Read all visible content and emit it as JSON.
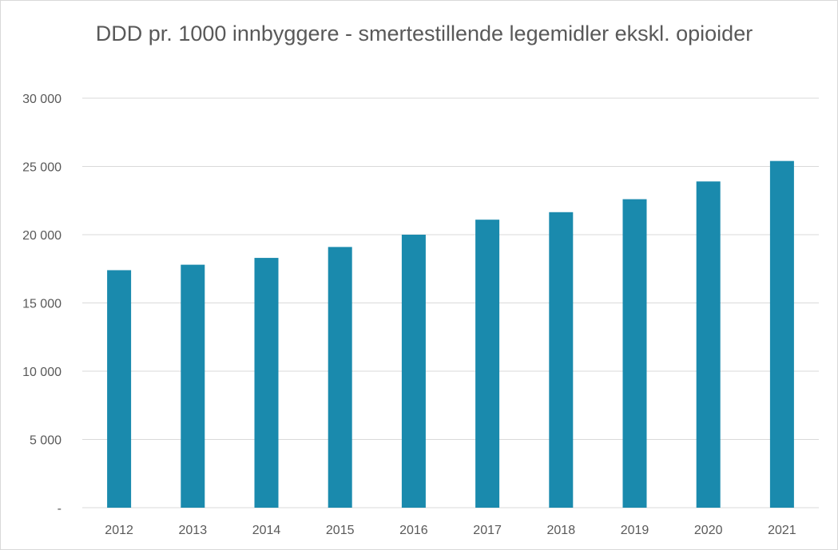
{
  "chart_data": {
    "type": "bar",
    "title": "DDD pr. 1000 innbyggere - smertestillende legemidler ekskl. opioider",
    "xlabel": "",
    "ylabel": "",
    "categories": [
      "2012",
      "2013",
      "2014",
      "2015",
      "2016",
      "2017",
      "2018",
      "2019",
      "2020",
      "2021"
    ],
    "series": [
      {
        "values": [
          17400,
          17800,
          18300,
          19100,
          20000,
          21100,
          21650,
          22600,
          23900,
          25400
        ]
      }
    ],
    "ylim": [
      0,
      30000
    ],
    "yticks": [
      0,
      5000,
      10000,
      15000,
      20000,
      25000,
      30000
    ],
    "ytick_labels": [
      "-",
      "5 000",
      "10 000",
      "15 000",
      "20 000",
      "25 000",
      "30 000"
    ],
    "grid": true,
    "legend": "none",
    "colors": {
      "bar": "#1a8aad",
      "grid": "#d9d9d9",
      "text": "#595959"
    }
  }
}
